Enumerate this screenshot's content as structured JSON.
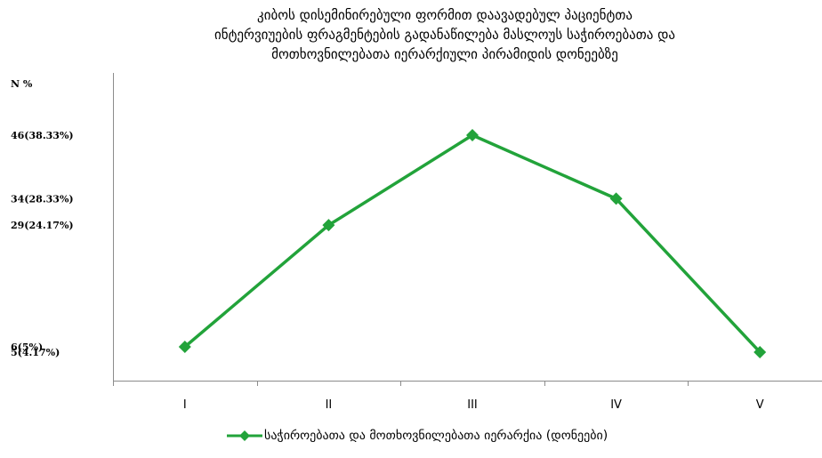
{
  "title_lines": [
    "კიბოს  დისემინირებული ფორმით  დაავადებულ პაციენტთა",
    "ინტერვიუების ფრაგმენტების გადანაწილება მასლოუს საჭიროებათა და",
    "მოთხოვნილებათა  იერარქიული პირამიდის დონეებზე"
  ],
  "chart_data": {
    "type": "line",
    "title": "კიბოს  დისემინირებული ფორმით  დაავადებულ პაციენტთა ინტერვიუების ფრაგმენტების გადანაწილება მასლოუს საჭიროებათა და მოთხოვნილებათა  იერარქიული პირამიდის დონეებზე",
    "ylabel": "N  %",
    "xlabel": "",
    "categories": [
      "I",
      "II",
      "III",
      "IV",
      "V"
    ],
    "series": [
      {
        "name": "საჭიროებათა და მოთხოვნილებათა იერარქია (დონეები)",
        "values": [
          6,
          29,
          46,
          34,
          5
        ],
        "color": "#22a33a",
        "marker": "diamond"
      }
    ],
    "y_tick_labels": [
      {
        "value": 46,
        "label": "46(38.33%)"
      },
      {
        "value": 34,
        "label": "34(28.33%)"
      },
      {
        "value": 29,
        "label": "29(24.17%)"
      },
      {
        "value": 6,
        "label": "6(5%)"
      },
      {
        "value": 5,
        "label": "5(4.17%)"
      }
    ],
    "ylim": [
      0,
      52
    ],
    "grid": false,
    "legend": "bottom"
  }
}
